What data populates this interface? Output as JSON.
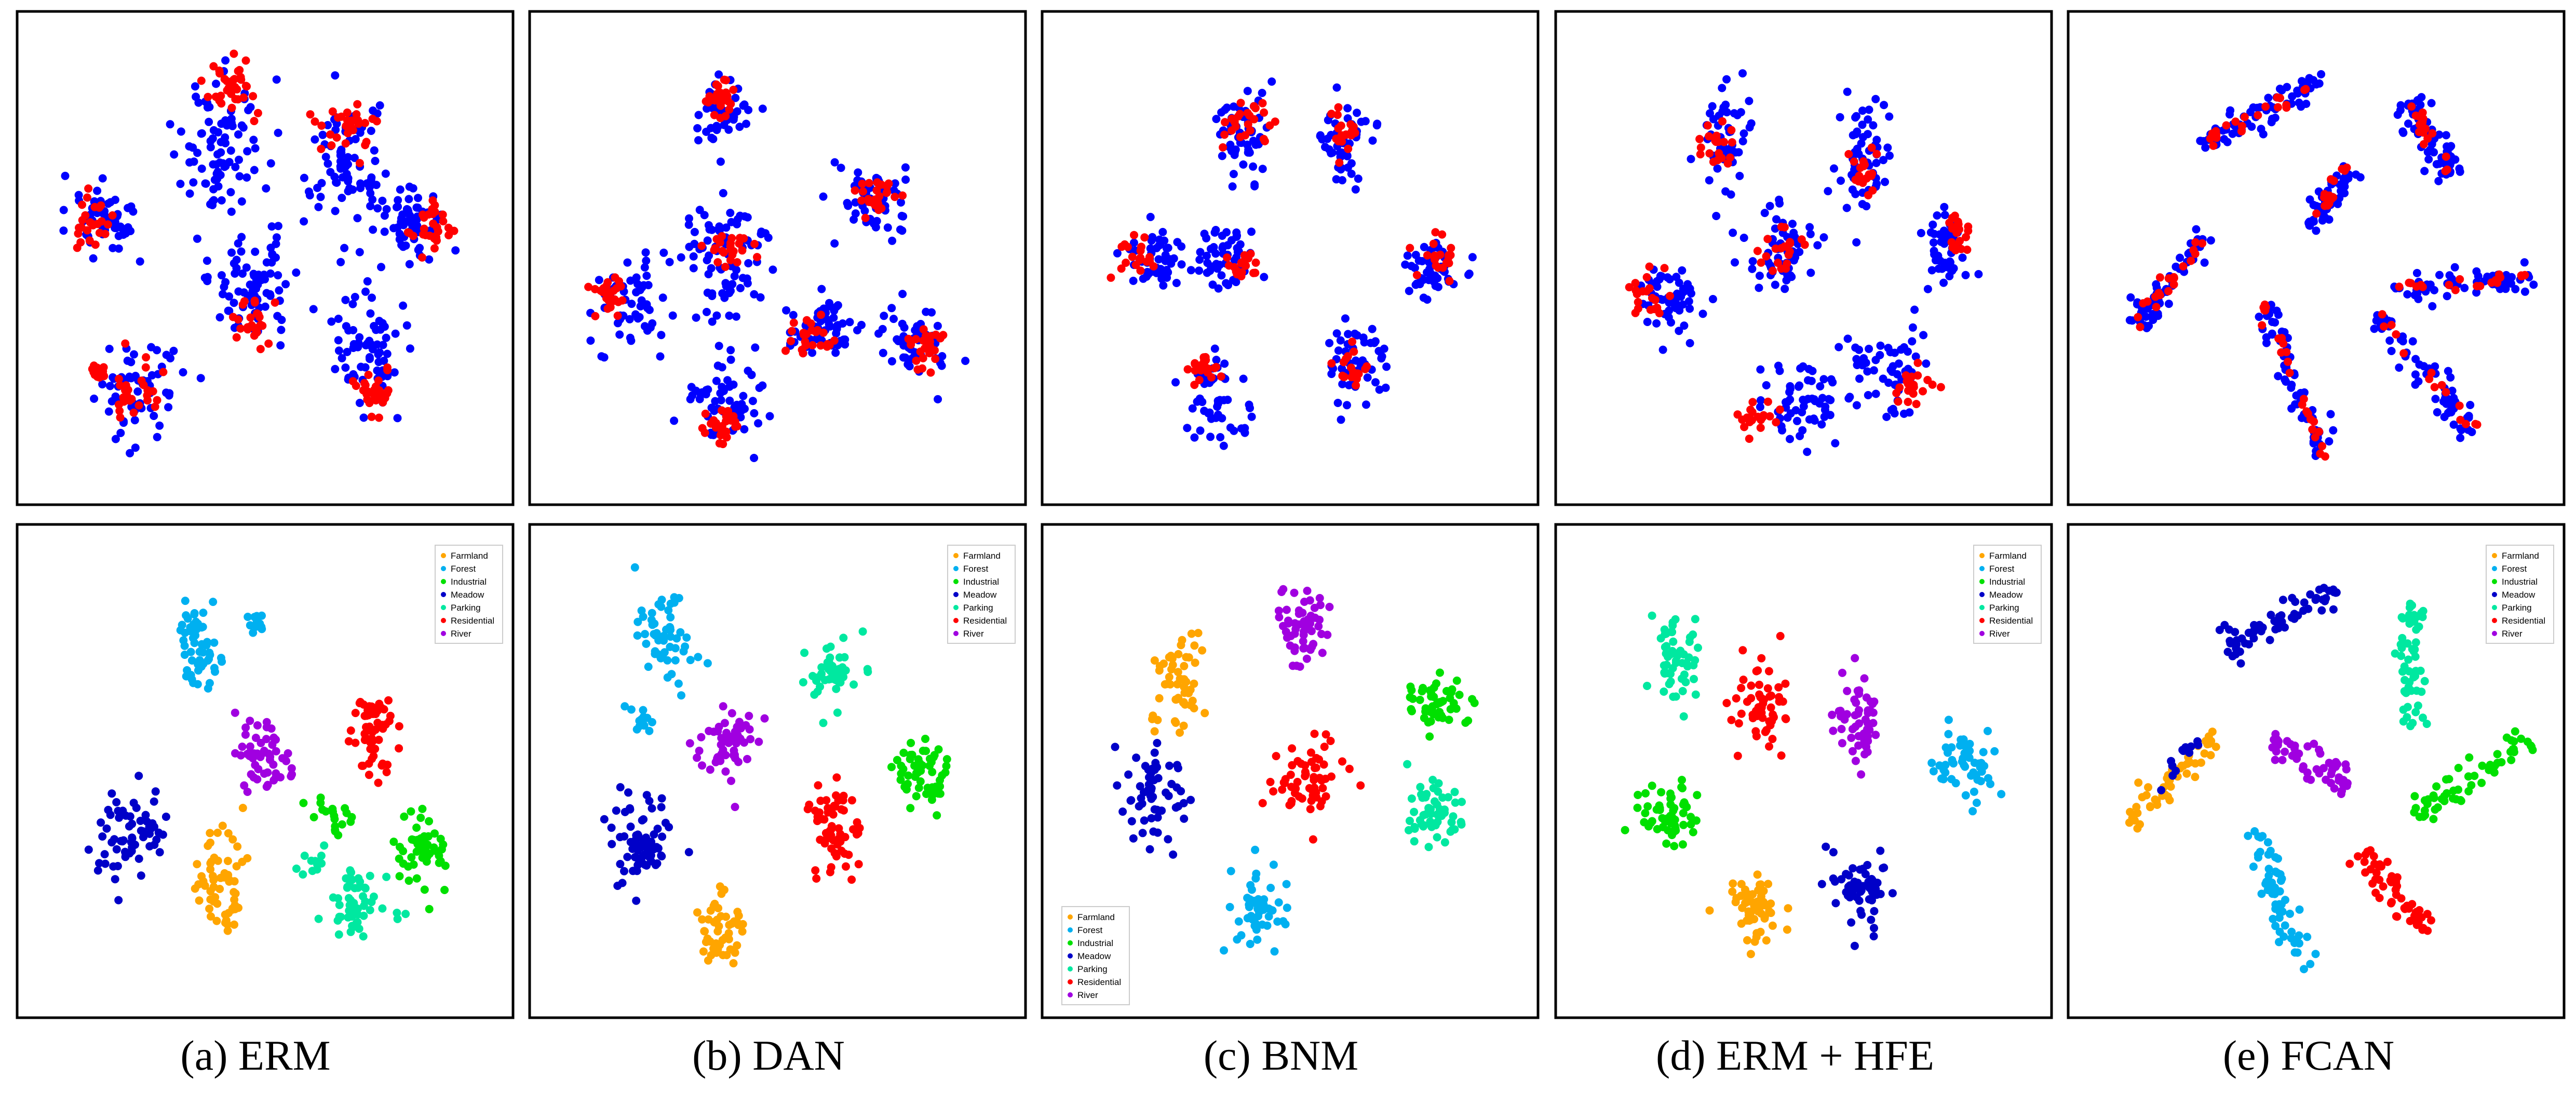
{
  "colors": {
    "source": "#0000ff",
    "target": "#ff0000",
    "Farmland": "#ffa500",
    "Forest": "#00b0f0",
    "Industrial": "#00e000",
    "Meadow": "#0000c8",
    "Parking": "#00e8a0",
    "Residential": "#ff0000",
    "River": "#a000e0",
    "frame": "#000000"
  },
  "legend_labels": [
    "Farmland",
    "Forest",
    "Industrial",
    "Meadow",
    "Parking",
    "Residential",
    "River"
  ],
  "captions": [
    "(a) ERM",
    "(b) DAN",
    "(c) BNM",
    "(d) ERM + HFE",
    "(e) FCAN"
  ],
  "chart_data": [
    {
      "type": "scatter",
      "panel": "(a) ERM",
      "row": "domain",
      "xlim": [
        0,
        100
      ],
      "ylim": [
        0,
        100
      ],
      "clusters": [
        {
          "series": "source",
          "cx": 40,
          "cy": 73,
          "sx": 8,
          "sy": 13,
          "n": 90
        },
        {
          "series": "target",
          "cx": 42,
          "cy": 88,
          "sx": 5,
          "sy": 5,
          "n": 35
        },
        {
          "series": "source",
          "cx": 68,
          "cy": 70,
          "sx": 7,
          "sy": 12,
          "n": 80
        },
        {
          "series": "target",
          "cx": 68,
          "cy": 80,
          "sx": 5,
          "sy": 5,
          "n": 30
        },
        {
          "series": "source",
          "cx": 82,
          "cy": 58,
          "sx": 6,
          "sy": 7,
          "n": 60
        },
        {
          "series": "target",
          "cx": 87,
          "cy": 57,
          "sx": 4,
          "sy": 5,
          "n": 30
        },
        {
          "series": "source",
          "cx": 15,
          "cy": 58,
          "sx": 6,
          "sy": 8,
          "n": 55
        },
        {
          "series": "target",
          "cx": 12,
          "cy": 58,
          "sx": 3,
          "sy": 5,
          "n": 25
        },
        {
          "series": "source",
          "cx": 47,
          "cy": 45,
          "sx": 8,
          "sy": 10,
          "n": 80
        },
        {
          "series": "target",
          "cx": 48,
          "cy": 36,
          "sx": 4,
          "sy": 5,
          "n": 25
        },
        {
          "series": "source",
          "cx": 73,
          "cy": 30,
          "sx": 6,
          "sy": 10,
          "n": 70
        },
        {
          "series": "target",
          "cx": 74,
          "cy": 20,
          "sx": 4,
          "sy": 4,
          "n": 30
        },
        {
          "series": "source",
          "cx": 22,
          "cy": 22,
          "sx": 7,
          "sy": 8,
          "n": 60
        },
        {
          "series": "target",
          "cx": 20,
          "cy": 20,
          "sx": 5,
          "sy": 5,
          "n": 30
        },
        {
          "series": "target",
          "cx": 13,
          "cy": 25,
          "sx": 2,
          "sy": 2,
          "n": 12
        }
      ]
    },
    {
      "type": "scatter",
      "panel": "(b) DAN",
      "row": "domain",
      "xlim": [
        0,
        100
      ],
      "ylim": [
        0,
        100
      ],
      "clusters": [
        {
          "series": "source",
          "cx": 38,
          "cy": 82,
          "sx": 5,
          "sy": 6,
          "n": 45
        },
        {
          "series": "target",
          "cx": 38,
          "cy": 85,
          "sx": 4,
          "sy": 4,
          "n": 25
        },
        {
          "series": "source",
          "cx": 72,
          "cy": 62,
          "sx": 6,
          "sy": 7,
          "n": 55
        },
        {
          "series": "target",
          "cx": 72,
          "cy": 64,
          "sx": 4,
          "sy": 4,
          "n": 25
        },
        {
          "series": "source",
          "cx": 18,
          "cy": 40,
          "sx": 7,
          "sy": 8,
          "n": 60
        },
        {
          "series": "target",
          "cx": 13,
          "cy": 43,
          "sx": 3,
          "sy": 4,
          "n": 25
        },
        {
          "series": "source",
          "cx": 38,
          "cy": 48,
          "sx": 8,
          "sy": 12,
          "n": 80
        },
        {
          "series": "target",
          "cx": 40,
          "cy": 53,
          "sx": 4,
          "sy": 4,
          "n": 25
        },
        {
          "series": "source",
          "cx": 60,
          "cy": 35,
          "sx": 6,
          "sy": 7,
          "n": 60
        },
        {
          "series": "target",
          "cx": 57,
          "cy": 32,
          "sx": 4,
          "sy": 4,
          "n": 25
        },
        {
          "series": "source",
          "cx": 80,
          "cy": 32,
          "sx": 6,
          "sy": 7,
          "n": 55
        },
        {
          "series": "target",
          "cx": 83,
          "cy": 30,
          "sx": 3,
          "sy": 4,
          "n": 25
        },
        {
          "series": "source",
          "cx": 38,
          "cy": 20,
          "sx": 7,
          "sy": 8,
          "n": 60
        },
        {
          "series": "target",
          "cx": 38,
          "cy": 13,
          "sx": 4,
          "sy": 4,
          "n": 25
        }
      ]
    },
    {
      "type": "scatter",
      "panel": "(c) BNM",
      "row": "domain",
      "xlim": [
        0,
        100
      ],
      "ylim": [
        0,
        100
      ],
      "clusters": [
        {
          "series": "source",
          "cx": 40,
          "cy": 78,
          "sx": 5,
          "sy": 10,
          "n": 55
        },
        {
          "series": "target",
          "cx": 40,
          "cy": 80,
          "sx": 4,
          "sy": 5,
          "n": 25
        },
        {
          "series": "source",
          "cx": 62,
          "cy": 75,
          "sx": 6,
          "sy": 8,
          "n": 50
        },
        {
          "series": "target",
          "cx": 62,
          "cy": 77,
          "sx": 4,
          "sy": 4,
          "n": 20
        },
        {
          "series": "source",
          "cx": 20,
          "cy": 50,
          "sx": 6,
          "sy": 6,
          "n": 50
        },
        {
          "series": "target",
          "cx": 15,
          "cy": 50,
          "sx": 4,
          "sy": 4,
          "n": 20
        },
        {
          "series": "source",
          "cx": 36,
          "cy": 50,
          "sx": 6,
          "sy": 6,
          "n": 50
        },
        {
          "series": "target",
          "cx": 40,
          "cy": 48,
          "sx": 3,
          "sy": 3,
          "n": 20
        },
        {
          "series": "source",
          "cx": 82,
          "cy": 48,
          "sx": 6,
          "sy": 6,
          "n": 50
        },
        {
          "series": "target",
          "cx": 82,
          "cy": 50,
          "sx": 4,
          "sy": 4,
          "n": 20
        },
        {
          "series": "source",
          "cx": 64,
          "cy": 26,
          "sx": 6,
          "sy": 7,
          "n": 50
        },
        {
          "series": "target",
          "cx": 64,
          "cy": 26,
          "sx": 4,
          "sy": 4,
          "n": 20
        },
        {
          "series": "source",
          "cx": 34,
          "cy": 18,
          "sx": 6,
          "sy": 8,
          "n": 50
        },
        {
          "series": "target",
          "cx": 31,
          "cy": 26,
          "sx": 3,
          "sy": 3,
          "n": 20
        }
      ]
    },
    {
      "type": "scatter",
      "panel": "(d) ERM + HFE",
      "row": "domain",
      "xlim": [
        0,
        100
      ],
      "ylim": [
        0,
        100
      ],
      "clusters": [
        {
          "series": "source",
          "cx": 32,
          "cy": 77,
          "sx": 5,
          "sy": 10,
          "n": 55
        },
        {
          "series": "target",
          "cx": 32,
          "cy": 75,
          "sx": 3,
          "sy": 4,
          "n": 20
        },
        {
          "series": "source",
          "cx": 63,
          "cy": 72,
          "sx": 5,
          "sy": 10,
          "n": 55
        },
        {
          "series": "target",
          "cx": 63,
          "cy": 70,
          "sx": 3,
          "sy": 4,
          "n": 20
        },
        {
          "series": "source",
          "cx": 45,
          "cy": 50,
          "sx": 6,
          "sy": 7,
          "n": 55
        },
        {
          "series": "target",
          "cx": 45,
          "cy": 52,
          "sx": 4,
          "sy": 4,
          "n": 20
        },
        {
          "series": "source",
          "cx": 20,
          "cy": 40,
          "sx": 6,
          "sy": 7,
          "n": 55
        },
        {
          "series": "target",
          "cx": 16,
          "cy": 42,
          "sx": 4,
          "sy": 4,
          "n": 20
        },
        {
          "series": "source",
          "cx": 82,
          "cy": 52,
          "sx": 5,
          "sy": 7,
          "n": 50
        },
        {
          "series": "target",
          "cx": 84,
          "cy": 55,
          "sx": 3,
          "sy": 4,
          "n": 20
        },
        {
          "series": "source",
          "cx": 50,
          "cy": 18,
          "sx": 8,
          "sy": 7,
          "n": 60
        },
        {
          "series": "target",
          "cx": 40,
          "cy": 15,
          "sx": 4,
          "sy": 4,
          "n": 20
        },
        {
          "series": "source",
          "cx": 68,
          "cy": 25,
          "sx": 7,
          "sy": 8,
          "n": 55
        },
        {
          "series": "target",
          "cx": 75,
          "cy": 22,
          "sx": 4,
          "sy": 4,
          "n": 20
        }
      ]
    },
    {
      "type": "scatter",
      "panel": "(e) FCAN",
      "row": "domain",
      "xlim": [
        0,
        100
      ],
      "ylim": [
        0,
        100
      ],
      "lines": [
        {
          "series": "source",
          "x1": 25,
          "y1": 75,
          "x2": 52,
          "y2": 90,
          "w": 2.5,
          "n": 70
        },
        {
          "series": "target",
          "x1": 25,
          "y1": 75,
          "x2": 52,
          "y2": 90,
          "w": 1.5,
          "n": 20
        },
        {
          "series": "source",
          "x1": 70,
          "y1": 85,
          "x2": 80,
          "y2": 68,
          "w": 3,
          "n": 60
        },
        {
          "series": "target",
          "x1": 70,
          "y1": 85,
          "x2": 80,
          "y2": 68,
          "w": 1.5,
          "n": 18
        },
        {
          "series": "source",
          "x1": 48,
          "y1": 57,
          "x2": 57,
          "y2": 70,
          "w": 3,
          "n": 55
        },
        {
          "series": "target",
          "x1": 48,
          "y1": 57,
          "x2": 57,
          "y2": 70,
          "w": 1.5,
          "n": 15
        },
        {
          "series": "source",
          "x1": 10,
          "y1": 35,
          "x2": 26,
          "y2": 55,
          "w": 2.5,
          "n": 55
        },
        {
          "series": "target",
          "x1": 10,
          "y1": 35,
          "x2": 26,
          "y2": 55,
          "w": 1.5,
          "n": 20
        },
        {
          "series": "source",
          "x1": 67,
          "y1": 43,
          "x2": 98,
          "y2": 46,
          "w": 2.5,
          "n": 65
        },
        {
          "series": "target",
          "x1": 67,
          "y1": 43,
          "x2": 98,
          "y2": 46,
          "w": 1.5,
          "n": 20
        },
        {
          "series": "source",
          "x1": 38,
          "y1": 40,
          "x2": 52,
          "y2": 6,
          "w": 2.5,
          "n": 65
        },
        {
          "series": "target",
          "x1": 38,
          "y1": 40,
          "x2": 52,
          "y2": 6,
          "w": 1.2,
          "n": 25
        },
        {
          "series": "source",
          "x1": 63,
          "y1": 38,
          "x2": 85,
          "y2": 12,
          "w": 3,
          "n": 65
        },
        {
          "series": "target",
          "x1": 63,
          "y1": 38,
          "x2": 85,
          "y2": 12,
          "w": 1.2,
          "n": 15
        }
      ]
    },
    {
      "type": "scatter",
      "panel": "(a) ERM",
      "row": "class",
      "xlim": [
        0,
        100
      ],
      "ylim": [
        0,
        100
      ],
      "legend_position": "top-right",
      "clusters": [
        {
          "series": "Forest",
          "cx": 35,
          "cy": 77,
          "sx": 4,
          "sy": 8,
          "n": 55
        },
        {
          "series": "Forest",
          "cx": 48,
          "cy": 83,
          "sx": 2,
          "sy": 2,
          "n": 12
        },
        {
          "series": "River",
          "cx": 50,
          "cy": 53,
          "sx": 5,
          "sy": 7,
          "n": 55
        },
        {
          "series": "Residential",
          "cx": 74,
          "cy": 58,
          "sx": 5,
          "sy": 8,
          "n": 60
        },
        {
          "series": "Meadow",
          "cx": 20,
          "cy": 35,
          "sx": 6,
          "sy": 8,
          "n": 65
        },
        {
          "series": "Farmland",
          "cx": 40,
          "cy": 25,
          "sx": 5,
          "sy": 10,
          "n": 60
        },
        {
          "series": "Industrial",
          "cx": 85,
          "cy": 33,
          "sx": 5,
          "sy": 7,
          "n": 55
        },
        {
          "series": "Parking",
          "cx": 70,
          "cy": 20,
          "sx": 6,
          "sy": 7,
          "n": 55
        },
        {
          "series": "Industrial",
          "cx": 65,
          "cy": 40,
          "sx": 4,
          "sy": 5,
          "n": 20
        },
        {
          "series": "Parking",
          "cx": 60,
          "cy": 30,
          "sx": 3,
          "sy": 4,
          "n": 12
        }
      ]
    },
    {
      "type": "scatter",
      "panel": "(b) DAN",
      "row": "class",
      "xlim": [
        0,
        100
      ],
      "ylim": [
        0,
        100
      ],
      "legend_position": "top-right",
      "clusters": [
        {
          "series": "Forest",
          "cx": 25,
          "cy": 80,
          "sx": 5,
          "sy": 8,
          "n": 55
        },
        {
          "series": "Parking",
          "cx": 62,
          "cy": 72,
          "sx": 5,
          "sy": 6,
          "n": 50
        },
        {
          "series": "River",
          "cx": 40,
          "cy": 57,
          "sx": 5,
          "sy": 6,
          "n": 55
        },
        {
          "series": "Industrial",
          "cx": 82,
          "cy": 50,
          "sx": 5,
          "sy": 6,
          "n": 55
        },
        {
          "series": "Residential",
          "cx": 62,
          "cy": 38,
          "sx": 5,
          "sy": 8,
          "n": 60
        },
        {
          "series": "Meadow",
          "cx": 20,
          "cy": 35,
          "sx": 6,
          "sy": 9,
          "n": 70
        },
        {
          "series": "Farmland",
          "cx": 38,
          "cy": 15,
          "sx": 5,
          "sy": 7,
          "n": 50
        },
        {
          "series": "Forest",
          "cx": 20,
          "cy": 60,
          "sx": 2,
          "sy": 5,
          "n": 12
        }
      ]
    },
    {
      "type": "scatter",
      "panel": "(c) BNM",
      "row": "class",
      "xlim": [
        0,
        100
      ],
      "ylim": [
        0,
        100
      ],
      "legend_position": "bottom-left",
      "clusters": [
        {
          "series": "Farmland",
          "cx": 25,
          "cy": 70,
          "sx": 5,
          "sy": 10,
          "n": 55
        },
        {
          "series": "River",
          "cx": 52,
          "cy": 82,
          "sx": 5,
          "sy": 6,
          "n": 55
        },
        {
          "series": "Meadow",
          "cx": 20,
          "cy": 45,
          "sx": 6,
          "sy": 8,
          "n": 60
        },
        {
          "series": "Residential",
          "cx": 55,
          "cy": 48,
          "sx": 6,
          "sy": 6,
          "n": 60
        },
        {
          "series": "Industrial",
          "cx": 82,
          "cy": 65,
          "sx": 5,
          "sy": 6,
          "n": 50
        },
        {
          "series": "Parking",
          "cx": 82,
          "cy": 40,
          "sx": 5,
          "sy": 7,
          "n": 55
        },
        {
          "series": "Forest",
          "cx": 42,
          "cy": 20,
          "sx": 5,
          "sy": 7,
          "n": 55
        }
      ]
    },
    {
      "type": "scatter",
      "panel": "(d) ERM + HFE",
      "row": "class",
      "xlim": [
        0,
        100
      ],
      "ylim": [
        0,
        100
      ],
      "legend_position": "top-right",
      "clusters": [
        {
          "series": "Parking",
          "cx": 22,
          "cy": 75,
          "sx": 4,
          "sy": 9,
          "n": 55
        },
        {
          "series": "Residential",
          "cx": 40,
          "cy": 65,
          "sx": 5,
          "sy": 8,
          "n": 55
        },
        {
          "series": "River",
          "cx": 62,
          "cy": 62,
          "sx": 4,
          "sy": 9,
          "n": 55
        },
        {
          "series": "Forest",
          "cx": 85,
          "cy": 52,
          "sx": 5,
          "sy": 6,
          "n": 50
        },
        {
          "series": "Industrial",
          "cx": 20,
          "cy": 40,
          "sx": 6,
          "sy": 6,
          "n": 55
        },
        {
          "series": "Farmland",
          "cx": 40,
          "cy": 20,
          "sx": 5,
          "sy": 8,
          "n": 55
        },
        {
          "series": "Meadow",
          "cx": 62,
          "cy": 25,
          "sx": 6,
          "sy": 7,
          "n": 55
        }
      ]
    },
    {
      "type": "scatter",
      "panel": "(e) FCAN",
      "row": "class",
      "xlim": [
        0,
        100
      ],
      "ylim": [
        0,
        100
      ],
      "legend_position": "top-right",
      "lines": [
        {
          "series": "Meadow",
          "x1": 30,
          "y1": 77,
          "x2": 55,
          "y2": 90,
          "w": 2.5,
          "n": 65
        },
        {
          "series": "Parking",
          "x1": 70,
          "y1": 60,
          "x2": 72,
          "y2": 87,
          "w": 2.5,
          "n": 55
        },
        {
          "series": "Farmland",
          "x1": 8,
          "y1": 37,
          "x2": 28,
          "y2": 58,
          "w": 2.5,
          "n": 55
        },
        {
          "series": "Meadow",
          "x1": 14,
          "y1": 45,
          "x2": 24,
          "y2": 57,
          "w": 1.2,
          "n": 12
        },
        {
          "series": "River",
          "x1": 40,
          "y1": 57,
          "x2": 57,
          "y2": 47,
          "w": 3,
          "n": 50
        },
        {
          "series": "Industrial",
          "x1": 72,
          "y1": 40,
          "x2": 97,
          "y2": 58,
          "w": 2.5,
          "n": 60
        },
        {
          "series": "Forest",
          "x1": 37,
          "y1": 37,
          "x2": 47,
          "y2": 6,
          "w": 2.5,
          "n": 60
        },
        {
          "series": "Residential",
          "x1": 60,
          "y1": 32,
          "x2": 75,
          "y2": 14,
          "w": 2.8,
          "n": 55
        }
      ]
    }
  ]
}
